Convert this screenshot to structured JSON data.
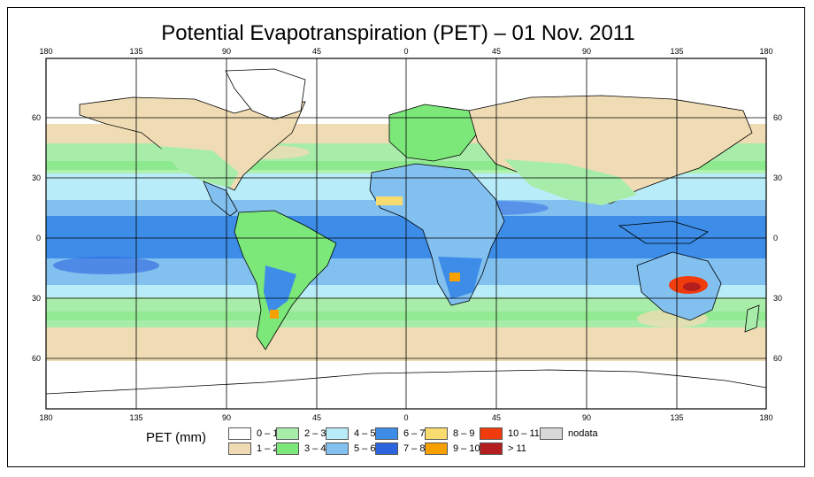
{
  "title": "Potential Evapotranspiration (PET) – 01 Nov. 2011",
  "map": {
    "top_lon_labels": [
      "180",
      "135",
      "90",
      "45",
      "0",
      "45",
      "90",
      "135",
      "180"
    ],
    "bottom_lon_labels": [
      "180",
      "135",
      "90",
      "45",
      "0",
      "45",
      "90",
      "135",
      "180"
    ],
    "left_lat_labels": [
      "60",
      "30",
      "0",
      "30",
      "60"
    ],
    "right_lat_labels": [
      "60",
      "30",
      "0",
      "30",
      "60"
    ]
  },
  "legend": {
    "title": "PET (mm)",
    "items": [
      {
        "label": "0 – 1",
        "color": "#ffffff"
      },
      {
        "label": "1 – 2",
        "color": "#f0dcb4"
      },
      {
        "label": "2 – 3",
        "color": "#a8ecaa"
      },
      {
        "label": "3 – 4",
        "color": "#7ce87a"
      },
      {
        "label": "4 – 5",
        "color": "#b8ecf8"
      },
      {
        "label": "5 – 6",
        "color": "#82c0f0"
      },
      {
        "label": "6 – 7",
        "color": "#3c8ce8"
      },
      {
        "label": "7 – 8",
        "color": "#2c64e0"
      },
      {
        "label": "8 – 9",
        "color": "#f8dc70"
      },
      {
        "label": "9 – 10",
        "color": "#f8a000"
      },
      {
        "label": "10 – 11",
        "color": "#f03c0c"
      },
      {
        "label": "> 11",
        "color": "#b41e1e"
      },
      {
        "label": "nodata",
        "color": "#d8d8d8"
      }
    ]
  }
}
